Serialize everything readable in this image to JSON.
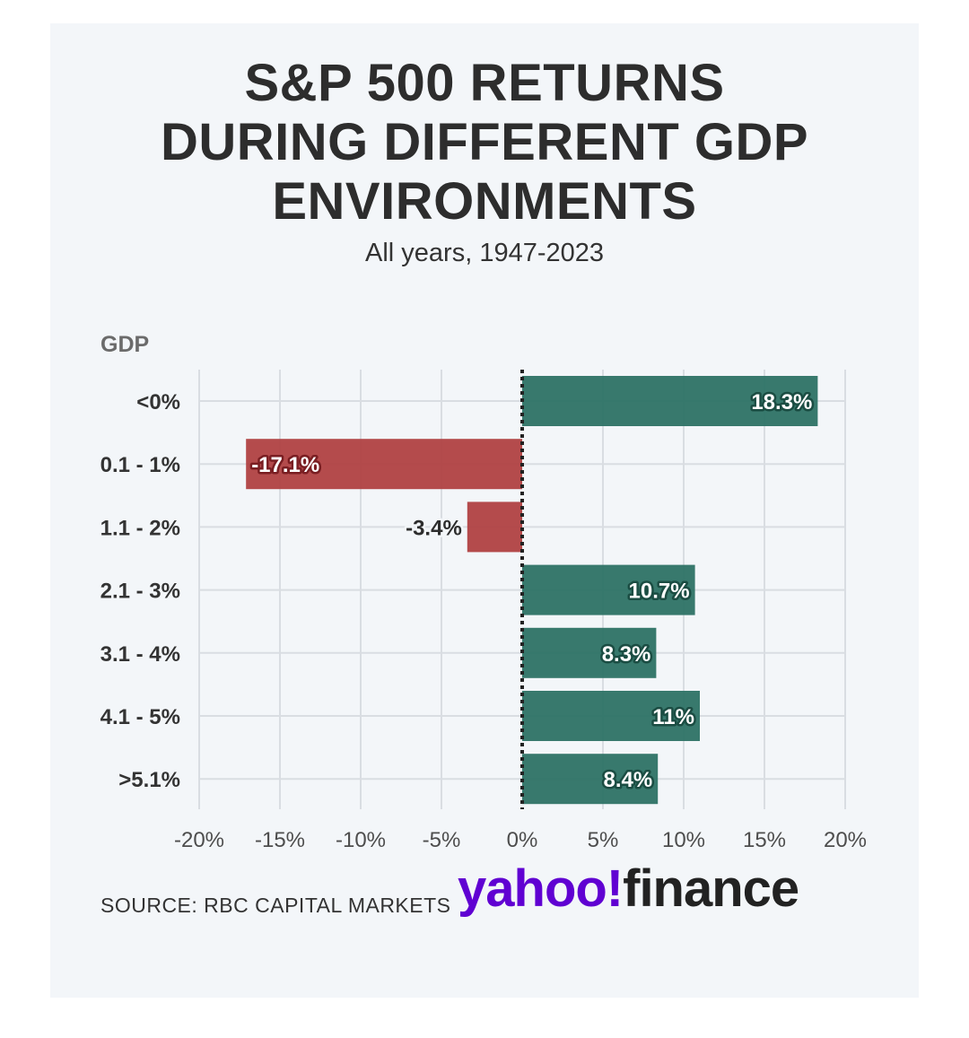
{
  "chart_data": {
    "type": "bar",
    "orientation": "horizontal",
    "title": [
      "S&P 500 RETURNS",
      "DURING DIFFERENT GDP",
      "ENVIRONMENTS"
    ],
    "subtitle": "All years, 1947-2023",
    "ylabel": "GDP",
    "categories": [
      "<0%",
      "0.1 - 1%",
      "1.1 - 2%",
      "2.1 - 3%",
      "3.1 - 4%",
      "4.1 - 5%",
      ">5.1%"
    ],
    "values": [
      18.3,
      -17.1,
      -3.4,
      10.7,
      8.3,
      11,
      8.4
    ],
    "value_labels": [
      "18.3%",
      "-17.1%",
      "-3.4%",
      "10.7%",
      "8.3%",
      "11%",
      "8.4%"
    ],
    "xlim": [
      -20,
      20
    ],
    "xticks": [
      -20,
      -15,
      -10,
      -5,
      0,
      5,
      10,
      15,
      20
    ],
    "xtick_labels": [
      "-20%",
      "-15%",
      "-10%",
      "-5%",
      "0%",
      "5%",
      "10%",
      "15%",
      "20%"
    ],
    "grid": true,
    "colors": {
      "positive": "#2d7265",
      "negative": "#b04142",
      "zero_line": "#222222",
      "grid": "#d9dde2"
    }
  },
  "source": "SOURCE: RBC CAPITAL MARKETS",
  "brand": {
    "name": "yahoo!finance",
    "part1": "yahoo",
    "part2": "finance",
    "color1": "#6001d2",
    "color2": "#222222"
  }
}
